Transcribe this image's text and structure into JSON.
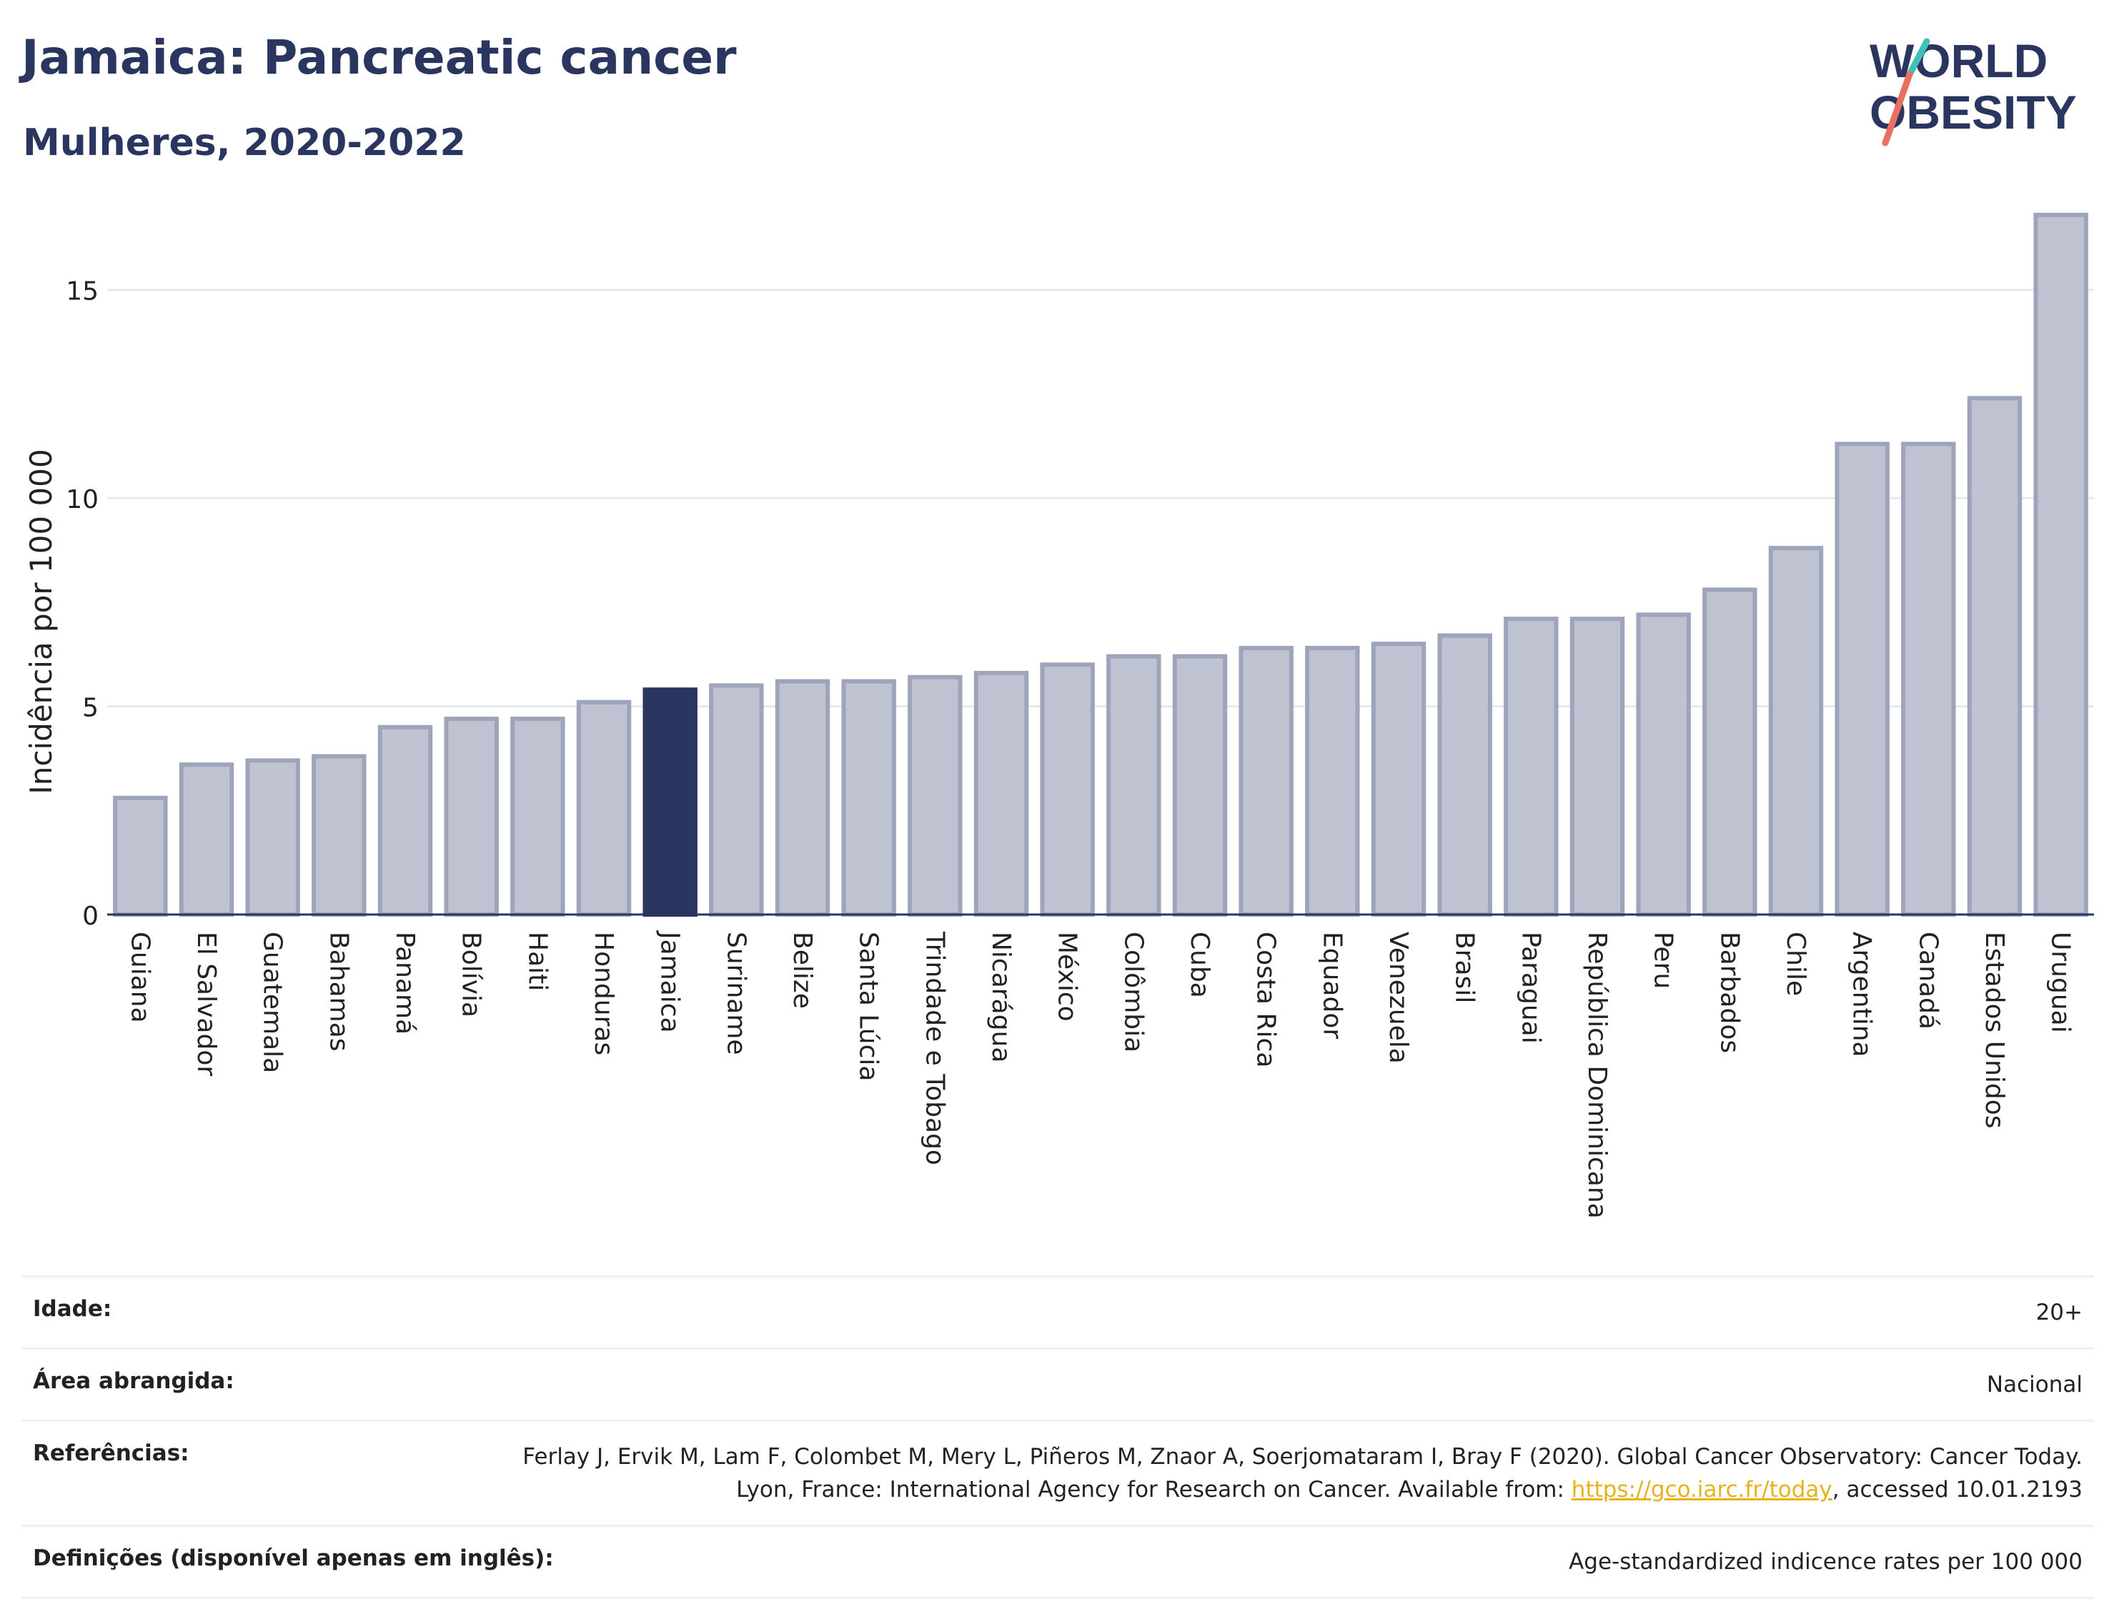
{
  "header": {
    "title": "Jamaica: Pancreatic cancer",
    "subtitle": "Mulheres, 2020-2022"
  },
  "logo": {
    "line1": "WORLD",
    "line2": "OBESITY"
  },
  "chart_data": {
    "type": "bar",
    "title": "Jamaica: Pancreatic cancer",
    "subtitle": "Mulheres, 2020-2022",
    "xlabel": "",
    "ylabel": "Incidência por 100 000",
    "ylim": [
      0,
      17.5
    ],
    "yticks": [
      0,
      5,
      10,
      15
    ],
    "grid": true,
    "highlight": "Jamaica",
    "colors": {
      "bar": "#bfc3d1",
      "bar_edge": "#9ea4ba",
      "highlight": "#2a3560",
      "grid": "#e6e8ee"
    },
    "categories": [
      "Guiana",
      "El Salvador",
      "Guatemala",
      "Bahamas",
      "Panamá",
      "Bolívia",
      "Haiti",
      "Honduras",
      "Jamaica",
      "Suriname",
      "Belize",
      "Santa Lúcia",
      "Trindade e Tobago",
      "Nicarágua",
      "México",
      "Colômbia",
      "Cuba",
      "Costa Rica",
      "Equador",
      "Venezuela",
      "Brasil",
      "Paraguai",
      "República Dominicana",
      "Peru",
      "Barbados",
      "Chile",
      "Argentina",
      "Canadá",
      "Estados Unidos",
      "Uruguai"
    ],
    "values": [
      2.8,
      3.6,
      3.7,
      3.8,
      4.5,
      4.7,
      4.7,
      5.1,
      5.4,
      5.5,
      5.6,
      5.6,
      5.7,
      5.8,
      6.0,
      6.2,
      6.2,
      6.4,
      6.4,
      6.5,
      6.7,
      7.1,
      7.1,
      7.2,
      7.8,
      8.8,
      11.3,
      11.3,
      12.4,
      16.8
    ]
  },
  "meta": {
    "age_label": "Idade:",
    "age_value": "20+",
    "area_label": "Área abrangida:",
    "area_value": "Nacional",
    "ref_label": "Referências:",
    "ref_text": "Ferlay J, Ervik M, Lam F, Colombet M, Mery L, Piñeros M, Znaor A, Soerjomataram I, Bray F (2020). Global Cancer Observatory: Cancer Today. Lyon, France: International Agency for Research on Cancer. Available from: ",
    "ref_link": "https://gco.iarc.fr/today",
    "ref_suffix": ", accessed 10.01.2193",
    "def_label": "Definições (disponível apenas em inglês):",
    "def_value": "Age-standardized indicence rates per 100 000"
  }
}
